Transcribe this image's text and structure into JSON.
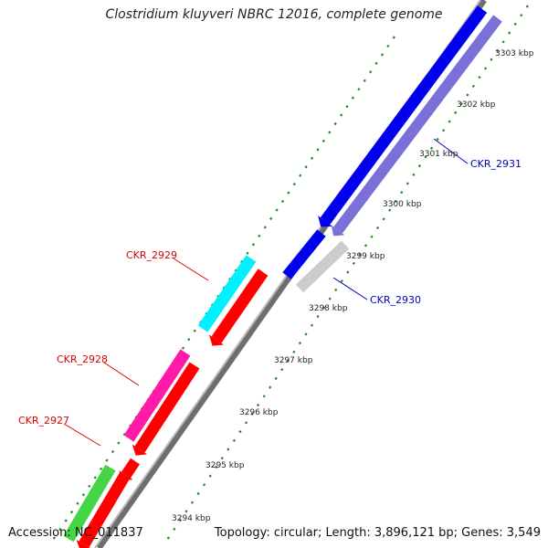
{
  "title": "Clostridium kluyveri NBRC 12016, complete genome",
  "accession": "Accession: NC_011837",
  "summary": "Topology: circular; Length: 3,896,121 bp; Genes: 3,549",
  "ticks": [
    "3294 kbp",
    "3295 kbp",
    "3296 kbp",
    "3297 kbp",
    "3298 kbp",
    "3299 kbp",
    "3300 kbp",
    "3301 kbp",
    "3302 kbp",
    "3303 kbp"
  ],
  "genes": [
    {
      "name": "CKR_2927",
      "color": "#dd0000"
    },
    {
      "name": "CKR_2928",
      "color": "#dd0000"
    },
    {
      "name": "CKR_2929",
      "color": "#dd0000"
    },
    {
      "name": "CKR_2930",
      "color": "#0000bb"
    },
    {
      "name": "CKR_2931",
      "color": "#0000bb"
    }
  ],
  "colors": {
    "backbone": "#8a8a8a",
    "dots": "#1a8a1a",
    "forward_red": "#ff0000",
    "cyan": "#00f0ff",
    "magenta": "#ff1aa8",
    "green": "#44d444",
    "blue": "#0000ee",
    "lavender": "#7b70d8",
    "lightgray": "#cccccc"
  }
}
